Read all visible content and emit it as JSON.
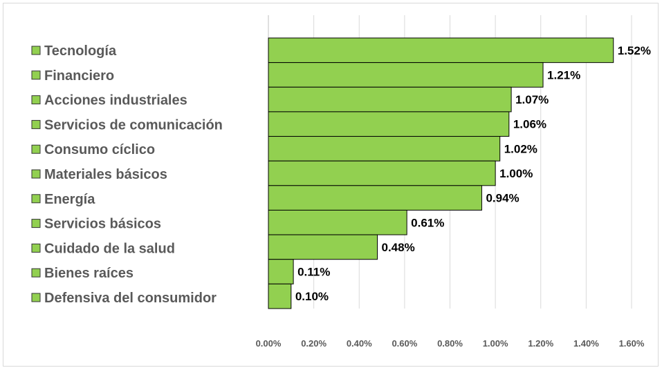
{
  "chart_data": {
    "type": "bar",
    "orientation": "horizontal",
    "categories": [
      "Tecnología",
      "Financiero",
      "Acciones industriales",
      "Servicios de comunicación",
      "Consumo cíclico",
      "Materiales básicos",
      "Energía",
      "Servicios básicos",
      "Cuidado de la salud",
      "Bienes raíces",
      "Defensiva del consumidor"
    ],
    "values": [
      1.52,
      1.21,
      1.07,
      1.06,
      1.02,
      1.0,
      0.94,
      0.61,
      0.48,
      0.11,
      0.1
    ],
    "data_labels": [
      "1.52%",
      "1.21%",
      "1.07%",
      "1.06%",
      "1.02%",
      "1.00%",
      "0.94%",
      "0.61%",
      "0.48%",
      "0.11%",
      "0.10%"
    ],
    "x_ticks": [
      "0.00%",
      "0.20%",
      "0.40%",
      "0.60%",
      "0.80%",
      "1.00%",
      "1.20%",
      "1.40%",
      "1.60%"
    ],
    "xlim": [
      0,
      1.6
    ],
    "title": "",
    "xlabel": "",
    "ylabel": "",
    "grid": "vertical",
    "legend": "left",
    "colors": {
      "bar_fill": "#92d050",
      "bar_stroke": "#000000",
      "grid": "#d9d9d9",
      "category_text": "#595959",
      "label_text": "#000000"
    }
  }
}
